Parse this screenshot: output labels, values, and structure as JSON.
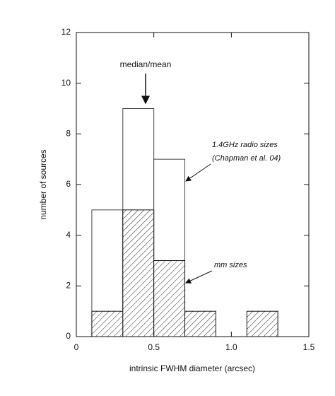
{
  "chart_data": {
    "type": "histogram",
    "xlabel": "intrinsic FWHM diameter (arcsec)",
    "ylabel": "number of sources",
    "bins": [
      0.1,
      0.3,
      0.5,
      0.7,
      0.9,
      1.1,
      1.3
    ],
    "series": [
      {
        "name": "1.4GHz radio sizes",
        "color": "#ffffff",
        "values": [
          5,
          9,
          7,
          0,
          0,
          0
        ]
      },
      {
        "name": "mm sizes",
        "color": "hatch",
        "values": [
          1,
          5,
          3,
          1,
          0,
          1
        ]
      }
    ],
    "annotations": [
      "median/mean",
      "(Chapman et al. 04)"
    ],
    "xlim": [
      0,
      1.5
    ],
    "xticks": [
      0,
      0.5,
      {
        "value": 1.0,
        "label": "1.0"
      },
      1.5
    ],
    "ylim": [
      0,
      12
    ],
    "yticks": [
      0,
      2,
      4,
      6,
      8,
      10,
      12
    ]
  }
}
